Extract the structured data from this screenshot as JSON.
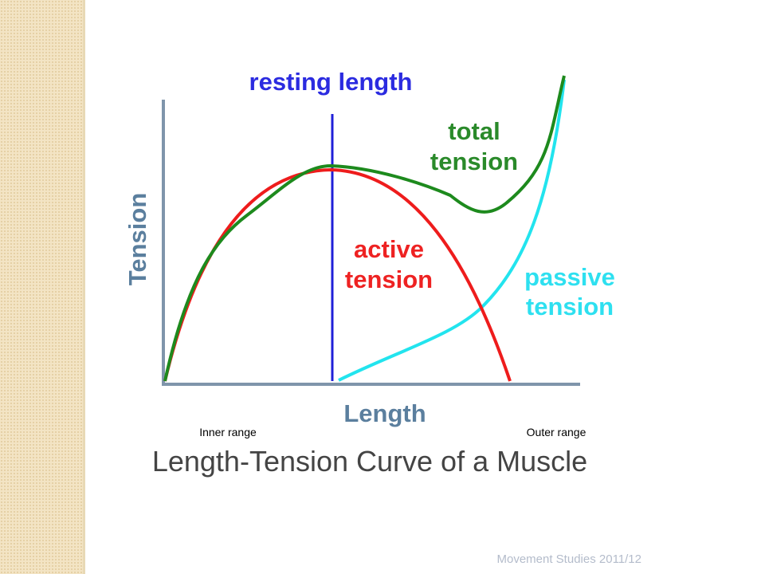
{
  "slide": {
    "figure": {
      "resting_label": "resting length",
      "total_label": [
        "total",
        "tension"
      ],
      "active_label": [
        "active",
        "tension"
      ],
      "passive_label": [
        "passive",
        "tension"
      ],
      "y_axis_label": "Tension",
      "x_axis_label": "Length",
      "inner_label": "Inner range",
      "outer_label": "Outer range",
      "caption": "Length-Tension Curve of a Muscle"
    },
    "footer": "Movement Studies 2011/12"
  }
}
